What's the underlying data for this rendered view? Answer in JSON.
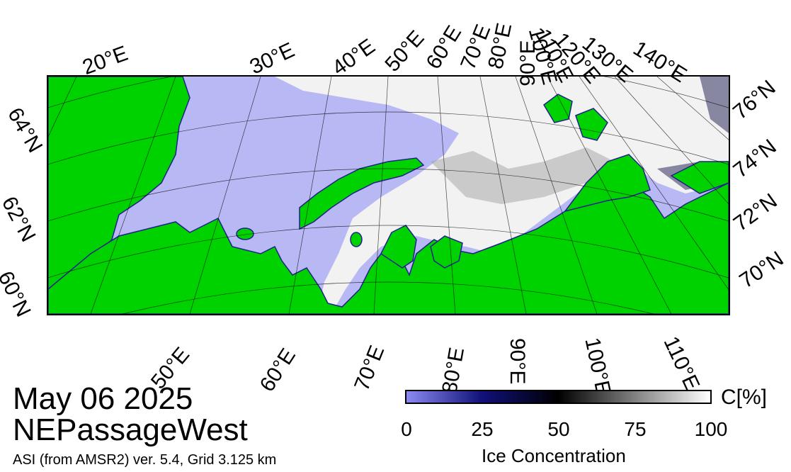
{
  "title": {
    "date": "May 06 2025",
    "region": "NEPassageWest",
    "source": "ASI (from AMSR2) ver. 5.4,  Grid 3.125 km"
  },
  "map": {
    "top_lon_labels": [
      "20°E",
      "30°E",
      "40°E",
      "50°E",
      "60°E",
      "70°E",
      "80°E",
      "90°E",
      "100°E",
      "110°E",
      "120°E",
      "130°E",
      "140°E"
    ],
    "bottom_lon_labels": [
      "50°E",
      "60°E",
      "70°E",
      "80°E",
      "90°E",
      "100°E",
      "110°E"
    ],
    "left_lat_labels": [
      "64°N",
      "62°N",
      "60°N"
    ],
    "right_lat_labels": [
      "76°N",
      "74°N",
      "72°N",
      "70°N"
    ],
    "colors": {
      "land": "#00d200",
      "open_water": "#b8b8f5",
      "sea_ice": "#ffffff",
      "ice_edge": "#20208a"
    }
  },
  "colorbar": {
    "unit": "C[%]",
    "title": "Ice Concentration",
    "ticks": [
      "0",
      "25",
      "50",
      "75",
      "100"
    ],
    "colors": [
      "#8a8af0",
      "#10107a",
      "#000000",
      "#808080",
      "#ffffff"
    ]
  }
}
